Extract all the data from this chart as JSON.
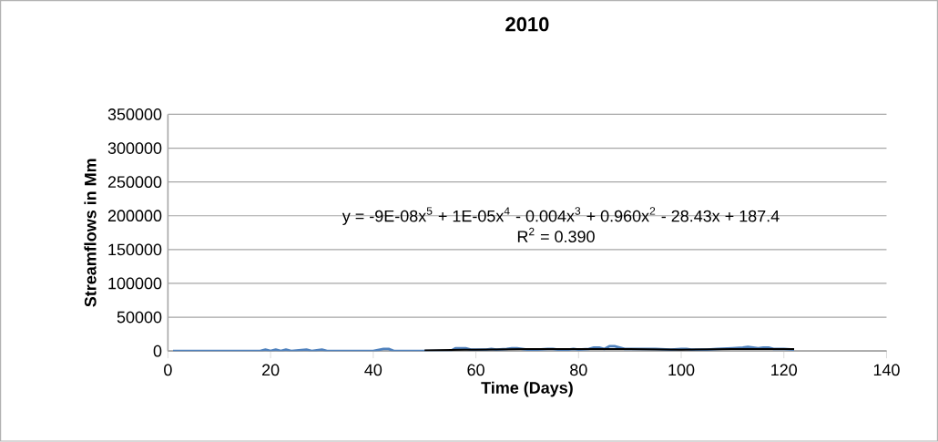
{
  "chart_data": {
    "type": "line",
    "title": "2010",
    "xlabel": "Time (Days)",
    "ylabel": "Streamflows in Mm",
    "xlim": [
      0,
      140
    ],
    "xticks": [
      0,
      20,
      40,
      60,
      80,
      100,
      120,
      140
    ],
    "ylim": [
      0,
      350000
    ],
    "yticks": [
      0,
      50000,
      100000,
      150000,
      200000,
      250000,
      300000,
      350000
    ],
    "grid": "y",
    "marker": "none",
    "series": [
      {
        "color": "#4f81bd",
        "x": [
          1,
          5,
          10,
          15,
          18,
          19,
          20,
          21,
          22,
          23,
          24,
          27,
          28,
          30,
          31,
          35,
          40,
          42,
          43,
          44,
          50,
          55,
          56,
          57,
          58,
          59,
          60,
          62,
          63,
          64,
          66,
          67,
          68,
          69,
          70,
          72,
          74,
          75,
          76,
          78,
          79,
          80,
          82,
          83,
          84,
          85,
          86,
          87,
          88,
          89,
          92,
          95,
          98,
          100,
          101,
          102,
          105,
          107,
          110,
          112,
          113,
          114,
          115,
          116,
          117,
          118,
          120,
          122
        ],
        "values": [
          0,
          0,
          0,
          0,
          0,
          2000,
          0,
          2000,
          0,
          2000,
          0,
          2000,
          0,
          2000,
          0,
          0,
          0,
          3000,
          3000,
          0,
          0,
          0,
          4000,
          4000,
          4000,
          2000,
          2000,
          2000,
          3000,
          2000,
          3000,
          4000,
          4000,
          3000,
          2000,
          2000,
          3000,
          3000,
          2000,
          2000,
          3000,
          2000,
          3000,
          5000,
          5000,
          3000,
          7000,
          7000,
          5000,
          3000,
          3000,
          3000,
          2000,
          3000,
          3000,
          2000,
          2000,
          3000,
          4000,
          5000,
          6000,
          5000,
          4000,
          5000,
          5000,
          3000,
          3000,
          2000
        ]
      },
      {
        "type": "line",
        "color": "#000000",
        "x": [
          50,
          60,
          70,
          80,
          90,
          100,
          110,
          122
        ],
        "values": [
          1000,
          2000,
          3000,
          3000,
          3000,
          2000,
          3000,
          3000
        ]
      }
    ],
    "annotations": [
      "y = -9E-08x$^{5}$ + 1E-05x$^{4}$ - 0.004x$^{3}$ + 0.960x$^{2}$ - 28.43x + 187.4",
      "R$^{2}$ = 0.390"
    ]
  }
}
